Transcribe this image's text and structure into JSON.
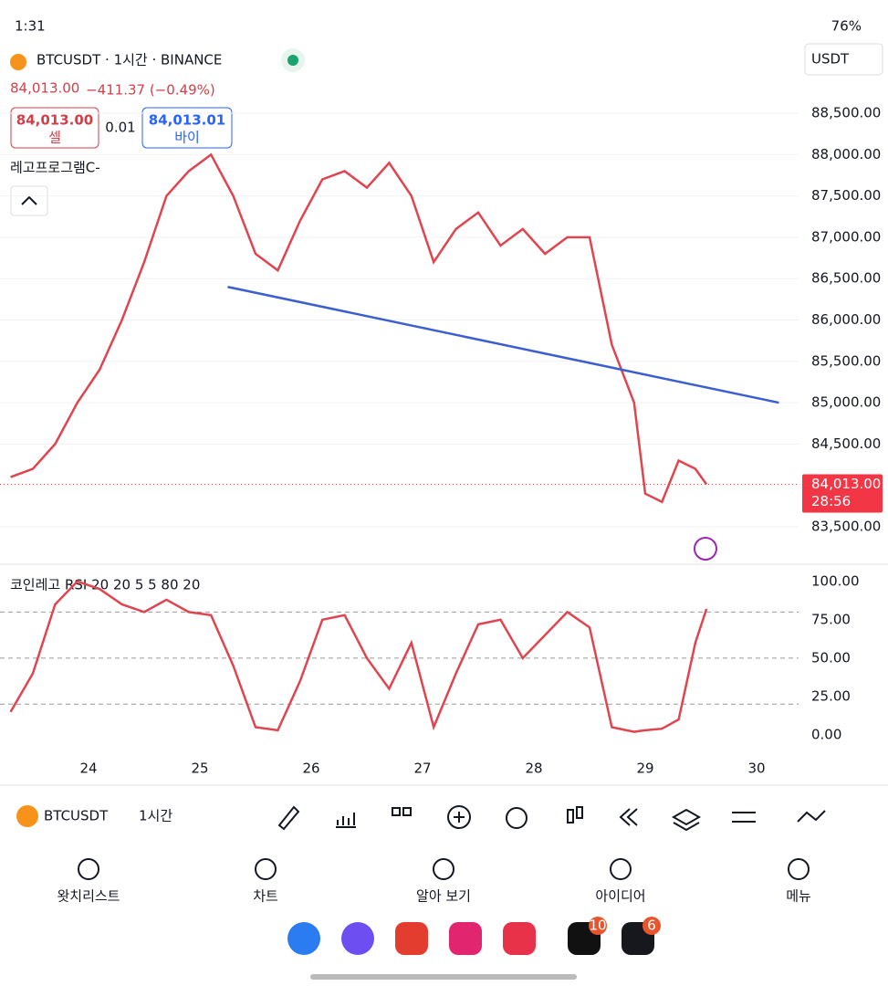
{
  "status_bar": {
    "time": "1:31",
    "battery": "76%"
  },
  "header": {
    "symbol": "BTCUSDT · 1시간 · BINANCE",
    "currency": "USDT",
    "price": "84,013.00",
    "change": "−411.37 (−0.49%)",
    "sell": {
      "price": "84,013.00",
      "label": "셀"
    },
    "spread": "0.01",
    "buy": {
      "price": "84,013.01",
      "label": "바이"
    },
    "indicator": "레고프로그램C-"
  },
  "chart_data": [
    {
      "type": "line",
      "color": "#e0454f",
      "x": [
        23.3,
        23.5,
        23.7,
        23.9,
        24.1,
        24.3,
        24.5,
        24.7,
        24.9,
        25.1,
        25.3,
        25.5,
        25.7,
        25.9,
        26.1,
        26.3,
        26.5,
        26.7,
        26.9,
        27.1,
        27.3,
        27.5,
        27.7,
        27.9,
        28.1,
        28.3,
        28.5,
        28.7,
        28.9,
        29.0,
        29.15,
        29.3,
        29.45,
        29.55
      ],
      "values": [
        84100,
        84200,
        84500,
        85000,
        85400,
        86000,
        86700,
        87500,
        87800,
        88000,
        87500,
        86800,
        86600,
        87200,
        87700,
        87800,
        87600,
        87900,
        87500,
        86700,
        87100,
        87300,
        86900,
        87100,
        86800,
        87000,
        87000,
        85700,
        85000,
        83900,
        83800,
        84300,
        84200,
        84013
      ],
      "xlim": [
        23.205,
        30.377
      ],
      "ylim": [
        83080,
        88986
      ],
      "yticks": [
        {
          "value": 83500,
          "label": "83,500.00"
        },
        {
          "value": 84500,
          "label": "84,500.00"
        },
        {
          "value": 85000,
          "label": "85,000.00"
        },
        {
          "value": 85500,
          "label": "85,500.00"
        },
        {
          "value": 86000,
          "label": "86,000.00"
        },
        {
          "value": 86500,
          "label": "86,500.00"
        },
        {
          "value": 87000,
          "label": "87,000.00"
        },
        {
          "value": 87500,
          "label": "87,500.00"
        },
        {
          "value": 88000,
          "label": "88,000.00"
        },
        {
          "value": 88500,
          "label": "88,500.00"
        }
      ],
      "grid": true,
      "trendline": {
        "x": [
          25.25,
          30.2
        ],
        "y": [
          86400,
          85000
        ],
        "color": "#3b5fd0"
      },
      "last_price": {
        "value": 84013,
        "label": "84,013.00",
        "countdown": "28:56"
      }
    },
    {
      "type": "line",
      "title": "코인레고 RSI 20 20 5 5 80 20",
      "color": "#e0454f",
      "x": [
        23.3,
        23.5,
        23.7,
        23.9,
        24.1,
        24.3,
        24.5,
        24.7,
        24.9,
        25.1,
        25.3,
        25.5,
        25.7,
        25.9,
        26.1,
        26.3,
        26.5,
        26.7,
        26.9,
        27.1,
        27.3,
        27.5,
        27.7,
        27.9,
        28.1,
        28.3,
        28.5,
        28.7,
        28.9,
        29.0,
        29.15,
        29.3,
        29.45,
        29.55
      ],
      "values": [
        15,
        40,
        85,
        100,
        95,
        85,
        80,
        88,
        80,
        78,
        45,
        5,
        3,
        35,
        75,
        78,
        50,
        30,
        60,
        5,
        40,
        72,
        75,
        50,
        65,
        80,
        70,
        5,
        2,
        3,
        4,
        10,
        60,
        82
      ],
      "xlim": [
        23.205,
        30.377
      ],
      "ylim": [
        -6,
        107
      ],
      "yticks": [
        {
          "value": 0,
          "label": "0.00"
        },
        {
          "value": 25,
          "label": "25.00"
        },
        {
          "value": 50,
          "label": "50.00"
        },
        {
          "value": 75,
          "label": "75.00"
        },
        {
          "value": 100,
          "label": "100.00"
        }
      ],
      "xticks": [
        24,
        25,
        26,
        27,
        28,
        29,
        30
      ],
      "levels": [
        80,
        50,
        20
      ]
    }
  ],
  "toolbar": {
    "symbol": "BTCUSDT",
    "interval": "1시간"
  },
  "nav": [
    "왓치리스트",
    "차트",
    "알아 보기",
    "아이디어",
    "메뉴"
  ],
  "badges": [
    "10",
    "6"
  ]
}
